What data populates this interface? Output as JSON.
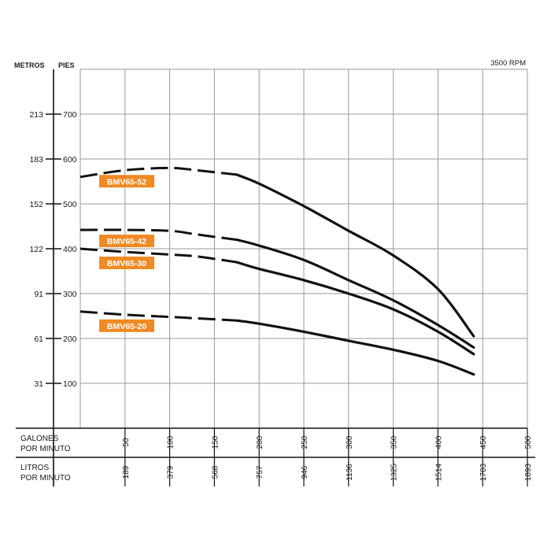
{
  "chart_data": {
    "type": "line",
    "rpm_label": "3500 RPM",
    "y_left_label": "METROS",
    "y_right_label": "PIES",
    "y_left_ticks": [
      "31",
      "61",
      "91",
      "122",
      "152",
      "183",
      "213"
    ],
    "y_right_ticks": [
      100,
      200,
      300,
      400,
      500,
      600,
      700
    ],
    "ylim": [
      0,
      800
    ],
    "x_row1_label": [
      "GALONES",
      "POR MINUTO"
    ],
    "x_row2_label": [
      "LITROS",
      "POR MINUTO"
    ],
    "x_ticks_gpm": [
      50,
      100,
      150,
      200,
      250,
      300,
      350,
      400,
      450,
      500
    ],
    "x_ticks_lpm": [
      "189",
      "379",
      "568",
      "757",
      "946",
      "1136",
      "1325",
      "1514",
      "1703",
      "1893"
    ],
    "xlim": [
      0,
      500
    ],
    "series": [
      {
        "name": "BMV65-52",
        "dashed": {
          "x": [
            0,
            50,
            100,
            130,
            175
          ],
          "y": [
            560,
            575,
            580,
            575,
            565
          ]
        },
        "solid": {
          "x": [
            175,
            200,
            250,
            300,
            350,
            400,
            440
          ],
          "y": [
            565,
            545,
            495,
            440,
            385,
            310,
            205
          ]
        }
      },
      {
        "name": "BMV65-42",
        "dashed": {
          "x": [
            0,
            50,
            100,
            130,
            175
          ],
          "y": [
            442,
            442,
            440,
            432,
            420
          ]
        },
        "solid": {
          "x": [
            175,
            200,
            250,
            300,
            350,
            400,
            440
          ],
          "y": [
            420,
            407,
            375,
            330,
            285,
            230,
            180
          ]
        }
      },
      {
        "name": "BMV65-30",
        "dashed": {
          "x": [
            0,
            50,
            100,
            130,
            175
          ],
          "y": [
            400,
            393,
            387,
            383,
            370
          ]
        },
        "solid": {
          "x": [
            175,
            200,
            250,
            300,
            350,
            400,
            440
          ],
          "y": [
            370,
            355,
            330,
            300,
            265,
            215,
            165
          ]
        }
      },
      {
        "name": "BMV65-20",
        "dashed": {
          "x": [
            0,
            50,
            100,
            130,
            175
          ],
          "y": [
            260,
            253,
            248,
            245,
            240
          ]
        },
        "solid": {
          "x": [
            175,
            200,
            250,
            300,
            350,
            400,
            440
          ],
          "y": [
            240,
            233,
            215,
            195,
            175,
            150,
            120
          ]
        }
      }
    ]
  },
  "colors": {
    "label_bg": "#f08a24",
    "label_text": "#ffffff",
    "line": "#111111",
    "grid": "#9a9a9a",
    "text": "#1a1a1a"
  }
}
